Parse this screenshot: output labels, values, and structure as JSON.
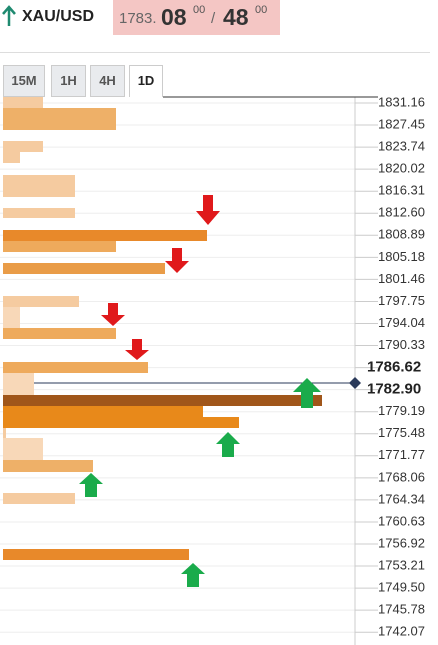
{
  "header": {
    "symbol": "XAU/USD",
    "price_main": "1783.",
    "price_big": "08",
    "price_sup": "00",
    "separator": "/",
    "price_big2": "48",
    "price_sup2": "00"
  },
  "tabs": [
    "15M",
    "1H",
    "4H",
    "1D"
  ],
  "levels": [
    {
      "text": "1831.16"
    },
    {
      "text": "1827.45"
    },
    {
      "text": "1823.74"
    },
    {
      "text": "1820.02"
    },
    {
      "text": "1816.31"
    },
    {
      "text": "1812.60"
    },
    {
      "text": "1808.89"
    },
    {
      "text": "1805.18"
    },
    {
      "text": "1801.46"
    },
    {
      "text": "1797.75"
    },
    {
      "text": "1794.04"
    },
    {
      "text": "1790.33"
    },
    {
      "text": "1786.62",
      "emphasis": true
    },
    {
      "text": "1782.90",
      "emphasis": true
    },
    {
      "text": "1779.19"
    },
    {
      "text": "1775.48"
    },
    {
      "text": "1771.77"
    },
    {
      "text": "1768.06"
    },
    {
      "text": "1764.34"
    },
    {
      "text": "1760.63"
    },
    {
      "text": "1756.92"
    },
    {
      "text": "1753.21"
    },
    {
      "text": "1749.50"
    },
    {
      "text": "1745.78"
    },
    {
      "text": "1742.07"
    }
  ]
}
